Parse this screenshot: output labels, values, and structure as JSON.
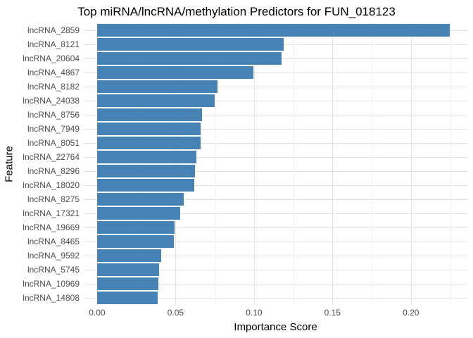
{
  "chart_data": {
    "type": "bar",
    "orientation": "horizontal",
    "title": "Top miRNA/lncRNA/methylation Predictors for FUN_018123",
    "xlabel": "Importance Score",
    "ylabel": "Feature",
    "categories": [
      "lncRNA_2859",
      "lncRNA_8121",
      "lncRNA_20604",
      "lncRNA_4867",
      "lncRNA_8182",
      "lncRNA_24038",
      "lncRNA_8756",
      "lncRNA_7949",
      "lncRNA_8051",
      "lncRNA_22764",
      "lncRNA_8296",
      "lncRNA_18020",
      "lncRNA_8275",
      "lncRNA_17321",
      "lncRNA_19669",
      "lncRNA_8465",
      "lncRNA_9592",
      "lncRNA_5745",
      "lncRNA_10969",
      "lncRNA_14808"
    ],
    "values": [
      0.2249,
      0.119,
      0.1176,
      0.0996,
      0.0767,
      0.0752,
      0.0667,
      0.0662,
      0.0658,
      0.0632,
      0.0626,
      0.0621,
      0.0553,
      0.0529,
      0.0493,
      0.049,
      0.0409,
      0.0394,
      0.0392,
      0.0386
    ],
    "x_ticks": [
      0,
      0.05,
      0.1,
      0.15,
      0.2
    ],
    "x_tick_labels": [
      "0.00",
      "0.05",
      "0.10",
      "0.15",
      "0.20"
    ],
    "x_minor_ticks": [
      0.025,
      0.075,
      0.125,
      0.175,
      0.225
    ],
    "xlim": [
      -0.0085,
      0.236
    ],
    "grid": true,
    "legend": false,
    "colors": {
      "bar": "#4682B4",
      "grid_major": "#E3E3E3",
      "grid_minor": "#F1F1F1",
      "axis_text": "#4D4D4D",
      "title_text": "#000000",
      "background": "#FFFFFF"
    }
  }
}
